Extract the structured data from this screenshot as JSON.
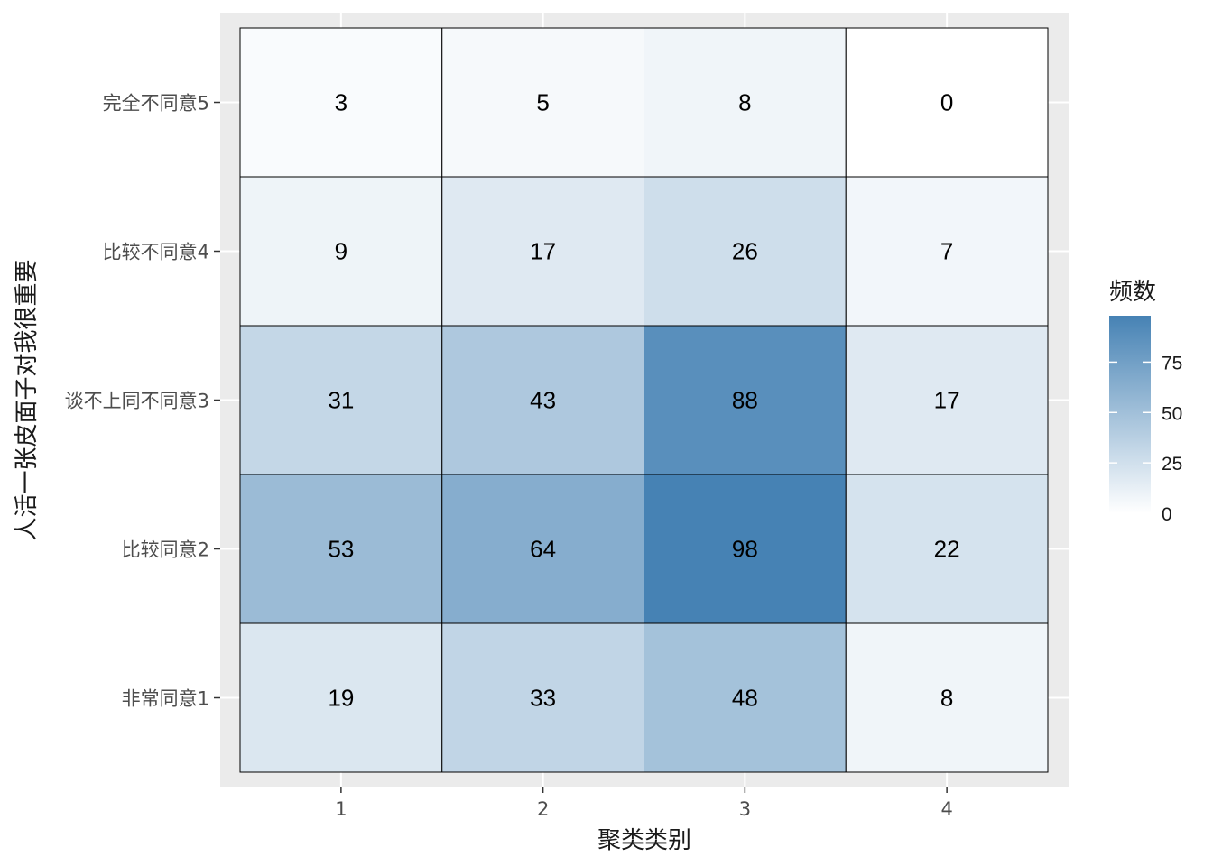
{
  "chart_data": {
    "type": "heatmap",
    "title": "",
    "xlabel": "聚类类别",
    "ylabel": "人活一张皮面子对我很重要",
    "x_categories": [
      "1",
      "2",
      "3",
      "4"
    ],
    "y_categories": [
      "完全不同意5",
      "比较不同意4",
      "谈不上同不同意3",
      "比较同意2",
      "非常同意1"
    ],
    "values": [
      [
        3,
        5,
        8,
        0
      ],
      [
        9,
        17,
        26,
        7
      ],
      [
        31,
        43,
        88,
        17
      ],
      [
        53,
        64,
        98,
        22
      ],
      [
        19,
        33,
        48,
        8
      ]
    ],
    "legend": {
      "title": "频数",
      "placement": "right",
      "ticks": [
        "0",
        "25",
        "50",
        "75"
      ],
      "tick_values": [
        0,
        25,
        50,
        75
      ],
      "range": [
        0,
        98
      ]
    },
    "colors": {
      "low": "#ffffff",
      "high": "#4682b4",
      "panel_background": "#ebebeb",
      "grid": "#ffffff",
      "cell_border": "#000000"
    },
    "grid": true
  }
}
